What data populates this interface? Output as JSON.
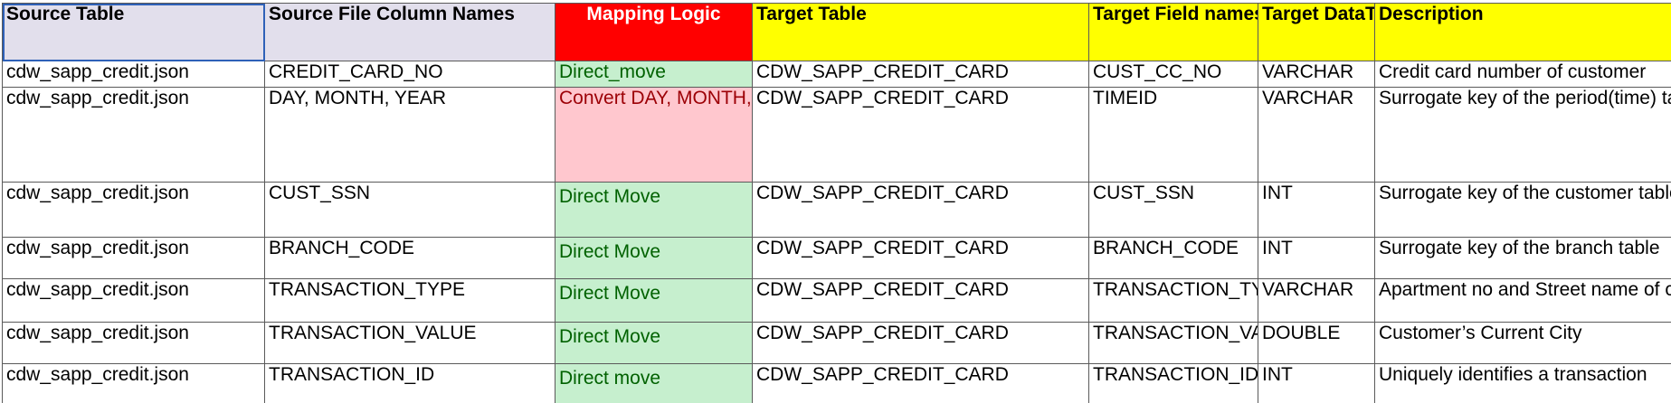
{
  "headers": {
    "source_table": "Source Table",
    "source_columns": "Source File Column Names",
    "mapping_logic": "Mapping Logic",
    "target_table": "Target Table",
    "target_field": "Target Field names",
    "target_datatype": "Target DataType",
    "description": "Description"
  },
  "rows": [
    {
      "source_table": "cdw_sapp_credit.json",
      "source_column": "CREDIT_CARD_NO",
      "mapping": "Direct_move",
      "target_table": "CDW_SAPP_CREDIT_CARD",
      "target_field": "CUST_CC_NO",
      "datatype": "VARCHAR",
      "description": "Credit card number of customer"
    },
    {
      "source_table": "cdw_sapp_credit.json",
      "source_column": "DAY, MONTH, YEAR",
      "mapping": "Convert DAY, MONTH, and YEAR into a TIMEID (YYYYMMDD)",
      "target_table": "CDW_SAPP_CREDIT_CARD",
      "target_field": "TIMEID",
      "datatype": "VARCHAR",
      "description": "Surrogate key of the period(time) tab"
    },
    {
      "source_table": "cdw_sapp_credit.json",
      "source_column": "CUST_SSN",
      "mapping": "Direct Move",
      "target_table": "CDW_SAPP_CREDIT_CARD",
      "target_field": "CUST_SSN",
      "datatype": "INT",
      "description": "Surrogate key of the customer table. identify a row."
    },
    {
      "source_table": "cdw_sapp_credit.json",
      "source_column": "BRANCH_CODE",
      "mapping": "Direct Move",
      "target_table": "CDW_SAPP_CREDIT_CARD",
      "target_field": "BRANCH_CODE",
      "datatype": "INT",
      "description": "Surrogate key of the branch table"
    },
    {
      "source_table": "cdw_sapp_credit.json",
      "source_column": "TRANSACTION_TYPE",
      "mapping": "Direct Move",
      "target_table": "CDW_SAPP_CREDIT_CARD",
      "target_field": "TRANSACTION_TYPE",
      "datatype": "VARCHAR",
      "description": "Apartment no and Street name of cus"
    },
    {
      "source_table": "cdw_sapp_credit.json",
      "source_column": "TRANSACTION_VALUE",
      "mapping": "Direct Move",
      "target_table": "CDW_SAPP_CREDIT_CARD",
      "target_field": "TRANSACTION_VALUE",
      "datatype": "DOUBLE",
      "description": "Customer’s Current City"
    },
    {
      "source_table": "cdw_sapp_credit.json",
      "source_column": "TRANSACTION_ID",
      "mapping": "Direct move",
      "target_table": "CDW_SAPP_CREDIT_CARD",
      "target_field": "TRANSACTION_ID",
      "datatype": "INT",
      "description": "Uniquely identifies a transaction"
    }
  ],
  "colors": {
    "source_header_bg": "#e2dfec",
    "mapping_header_bg": "#ff0000",
    "target_header_bg": "#ffff00",
    "good_fill": "#c6efce",
    "good_text": "#006100",
    "bad_fill": "#ffc7ce",
    "bad_text": "#9c0006"
  }
}
